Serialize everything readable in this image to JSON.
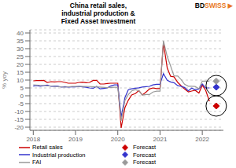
{
  "chart_data": {
    "type": "line",
    "title": "China retail sales,\nindustrial production &\nFixed Asset Investment",
    "ylabel": "% yoy",
    "xlim": [
      2017.92,
      2022.5
    ],
    "ylim": [
      -22,
      42
    ],
    "xticks": [
      2018,
      2019,
      2020,
      2021,
      2022
    ],
    "yticks": [
      -20,
      -15,
      -10,
      -5,
      0,
      5,
      10,
      15,
      20,
      25,
      30,
      35,
      40
    ],
    "grid": true,
    "legend": "bottom",
    "annotations": [
      {
        "text": "BD",
        "color": "#000000"
      },
      {
        "text": "SWISS",
        "color": "#e87722"
      },
      {
        "text": "▶",
        "color": "#e87722"
      }
    ],
    "circles": [
      {
        "x": 2022.33,
        "y": 6.5,
        "color": "#000000"
      },
      {
        "x": 2022.33,
        "y": -6.5,
        "color": "#000000"
      }
    ],
    "series": [
      {
        "name": "Retail sales",
        "type": "line",
        "color": "#cc0000",
        "x": [
          2018.0,
          2018.08,
          2018.17,
          2018.25,
          2018.33,
          2018.42,
          2018.5,
          2018.58,
          2018.67,
          2018.75,
          2018.83,
          2018.92,
          2019.0,
          2019.08,
          2019.17,
          2019.25,
          2019.33,
          2019.42,
          2019.5,
          2019.58,
          2019.67,
          2019.75,
          2019.83,
          2019.92,
          2020.0,
          2020.08,
          2020.17,
          2020.25,
          2020.33,
          2020.42,
          2020.5,
          2020.58,
          2020.67,
          2020.75,
          2020.83,
          2020.92,
          2021.0,
          2021.08,
          2021.17,
          2021.25,
          2021.33,
          2021.42,
          2021.5,
          2021.58,
          2021.67,
          2021.75,
          2021.83,
          2021.92,
          2022.0,
          2022.08,
          2022.17
        ],
        "values": [
          9.5,
          9.7,
          9.7,
          9.8,
          8.5,
          9.0,
          8.8,
          9.0,
          9.0,
          8.5,
          8.0,
          8.0,
          8.0,
          8.5,
          8.7,
          8.3,
          8.5,
          9.8,
          9.8,
          7.5,
          7.5,
          7.8,
          8.0,
          8.0,
          8.0,
          -20.5,
          -7.5,
          -2.8,
          0.5,
          1.5,
          3.3,
          0.5,
          2.4,
          4.3,
          5.0,
          4.6,
          4.6,
          33.8,
          17.7,
          12.4,
          12.1,
          8.5,
          6.4,
          4.4,
          2.5,
          3.0,
          3.5,
          1.7,
          6.7,
          3.5,
          -3.5
        ]
      },
      {
        "name": "Industrial production",
        "type": "line",
        "color": "#3333cc",
        "x": [
          2018.0,
          2018.08,
          2018.17,
          2018.25,
          2018.33,
          2018.42,
          2018.5,
          2018.58,
          2018.67,
          2018.75,
          2018.83,
          2018.92,
          2019.0,
          2019.08,
          2019.17,
          2019.25,
          2019.33,
          2019.42,
          2019.5,
          2019.58,
          2019.67,
          2019.75,
          2019.83,
          2019.92,
          2020.0,
          2020.08,
          2020.17,
          2020.25,
          2020.33,
          2020.42,
          2020.5,
          2020.58,
          2020.67,
          2020.75,
          2020.83,
          2020.92,
          2021.0,
          2021.08,
          2021.17,
          2021.25,
          2021.33,
          2021.42,
          2021.5,
          2021.58,
          2021.67,
          2021.75,
          2021.83,
          2021.92,
          2022.0,
          2022.08,
          2022.17
        ],
        "values": [
          6.2,
          6.5,
          6.0,
          6.5,
          6.8,
          6.0,
          6.2,
          6.1,
          5.5,
          5.8,
          5.5,
          5.7,
          5.7,
          5.9,
          5.7,
          5.4,
          5.0,
          4.8,
          6.0,
          4.4,
          4.7,
          5.0,
          6.2,
          6.9,
          6.9,
          -13.5,
          -1.1,
          3.9,
          4.4,
          4.8,
          5.1,
          5.6,
          5.8,
          6.0,
          6.9,
          7.3,
          7.3,
          14.1,
          9.8,
          8.8,
          8.3,
          6.4,
          6.0,
          5.3,
          3.1,
          4.9,
          3.8,
          4.3,
          7.5,
          5.0,
          5.0
        ]
      },
      {
        "name": "FAI",
        "type": "line",
        "color": "#999999",
        "x": [
          2018.0,
          2018.25,
          2018.5,
          2018.75,
          2018.92,
          2019.0,
          2019.25,
          2019.5,
          2019.75,
          2019.92,
          2020.0,
          2020.08,
          2020.17,
          2020.25,
          2020.33,
          2020.42,
          2020.5,
          2020.58,
          2020.67,
          2020.75,
          2020.83,
          2020.92,
          2021.0,
          2021.08,
          2021.17,
          2021.25,
          2021.33,
          2021.42,
          2021.5,
          2021.58,
          2021.67,
          2021.75,
          2021.83,
          2021.92,
          2022.0,
          2022.08,
          2022.17
        ],
        "values": [
          7.0,
          6.5,
          6.0,
          5.5,
          5.9,
          5.9,
          6.0,
          5.7,
          5.2,
          5.4,
          5.4,
          -16.0,
          -3.0,
          0.8,
          3.1,
          3.9,
          3.1,
          0.5,
          0.8,
          0.8,
          2.4,
          2.9,
          2.9,
          35.0,
          25.0,
          19.0,
          12.7,
          12.6,
          10.3,
          7.3,
          6.1,
          6.1,
          5.9,
          4.5,
          9.3,
          9.3,
          9.3
        ]
      },
      {
        "name": "Forecast",
        "type": "scatter",
        "marker": "diamond",
        "color": "#cc0000",
        "x": [
          2022.33
        ],
        "values": [
          -6.5
        ]
      },
      {
        "name": "Forecast",
        "type": "scatter",
        "marker": "diamond",
        "color": "#3333cc",
        "x": [
          2022.33
        ],
        "values": [
          5.5
        ]
      },
      {
        "name": "Forecast",
        "type": "scatter",
        "marker": "diamond",
        "color": "#999999",
        "x": [
          2022.33
        ],
        "values": [
          9.3
        ]
      }
    ]
  }
}
